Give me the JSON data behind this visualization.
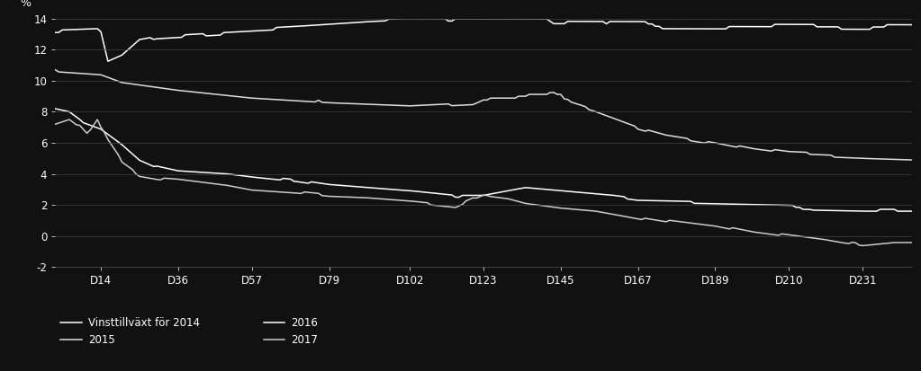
{
  "background_color": "#111111",
  "text_color": "#ffffff",
  "grid_color": "#444444",
  "ylabel": "%",
  "ylim": [
    -2,
    14
  ],
  "yticks": [
    -2,
    0,
    2,
    4,
    6,
    8,
    10,
    12,
    14
  ],
  "xtick_labels": [
    "D14",
    "D36",
    "D57",
    "D79",
    "D102",
    "D123",
    "D145",
    "D167",
    "D189",
    "D210",
    "D231"
  ],
  "xtick_positions": [
    14,
    36,
    57,
    79,
    102,
    123,
    145,
    167,
    189,
    210,
    231
  ],
  "n_points": 245,
  "legend_entries": [
    {
      "label": "Vinsttillväxt för 2014",
      "col": "#ffffff"
    },
    {
      "label": "2015",
      "col": "#cccccc"
    },
    {
      "label": "2016",
      "col": "#ffffff"
    },
    {
      "label": "2017",
      "col": "#cccccc"
    }
  ]
}
